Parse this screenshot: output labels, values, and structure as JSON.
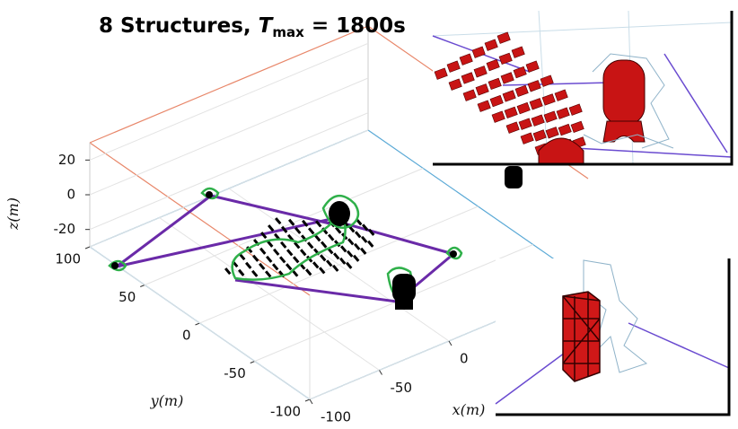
{
  "chart_data": {
    "type": "3d-line",
    "title": {
      "text": "8 Structures, ",
      "symbol": "T",
      "subscript": "max",
      "rest": " = 1800s"
    },
    "xlabel": "x(m)",
    "ylabel": "y(m)",
    "zlabel": "z(m)",
    "xlim": [
      -100,
      100
    ],
    "ylim": [
      -100,
      100
    ],
    "zlim": [
      -30,
      30
    ],
    "xticks": [
      -100,
      -50,
      0
    ],
    "yticks": [
      -100,
      -50,
      0,
      50,
      100
    ],
    "zticks": [
      -20,
      0,
      20
    ],
    "grid": true
  }
}
